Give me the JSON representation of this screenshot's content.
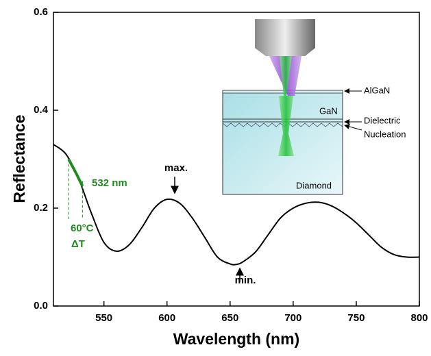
{
  "chart_data": {
    "type": "line",
    "xlabel": "Wavelength (nm)",
    "ylabel": "Reflectance",
    "xlim": [
      510,
      800
    ],
    "ylim": [
      0,
      0.6
    ],
    "xticks": [
      550,
      600,
      650,
      700,
      750,
      800
    ],
    "yticks": [
      {
        "value": 0,
        "label": "0.0"
      },
      0.2,
      0.4,
      0.6
    ],
    "series": [
      {
        "color": "#000000",
        "x": [
          510,
          520,
          530,
          540,
          550,
          560,
          570,
          580,
          590,
          600,
          610,
          620,
          630,
          640,
          650,
          655,
          660,
          670,
          680,
          690,
          700,
          710,
          720,
          730,
          740,
          750,
          760,
          770,
          780,
          790,
          800
        ],
        "values": [
          0.33,
          0.31,
          0.26,
          0.19,
          0.13,
          0.112,
          0.125,
          0.16,
          0.2,
          0.218,
          0.21,
          0.18,
          0.14,
          0.1,
          0.086,
          0.085,
          0.09,
          0.11,
          0.145,
          0.18,
          0.2,
          0.21,
          0.212,
          0.205,
          0.19,
          0.17,
          0.145,
          0.12,
          0.105,
          0.1,
          0.1
        ]
      },
      {
        "color": "#1e8c1e",
        "x": [
          522,
          527,
          533
        ],
        "values": [
          0.3,
          0.276,
          0.245
        ]
      }
    ],
    "annotations": [
      "max.",
      "min.",
      "532 nm",
      "60°C",
      "ΔT"
    ]
  },
  "inset": {
    "labels": [
      "AlGaN",
      "GaN",
      "Dielectric",
      "Nucleation",
      "Diamond"
    ]
  }
}
